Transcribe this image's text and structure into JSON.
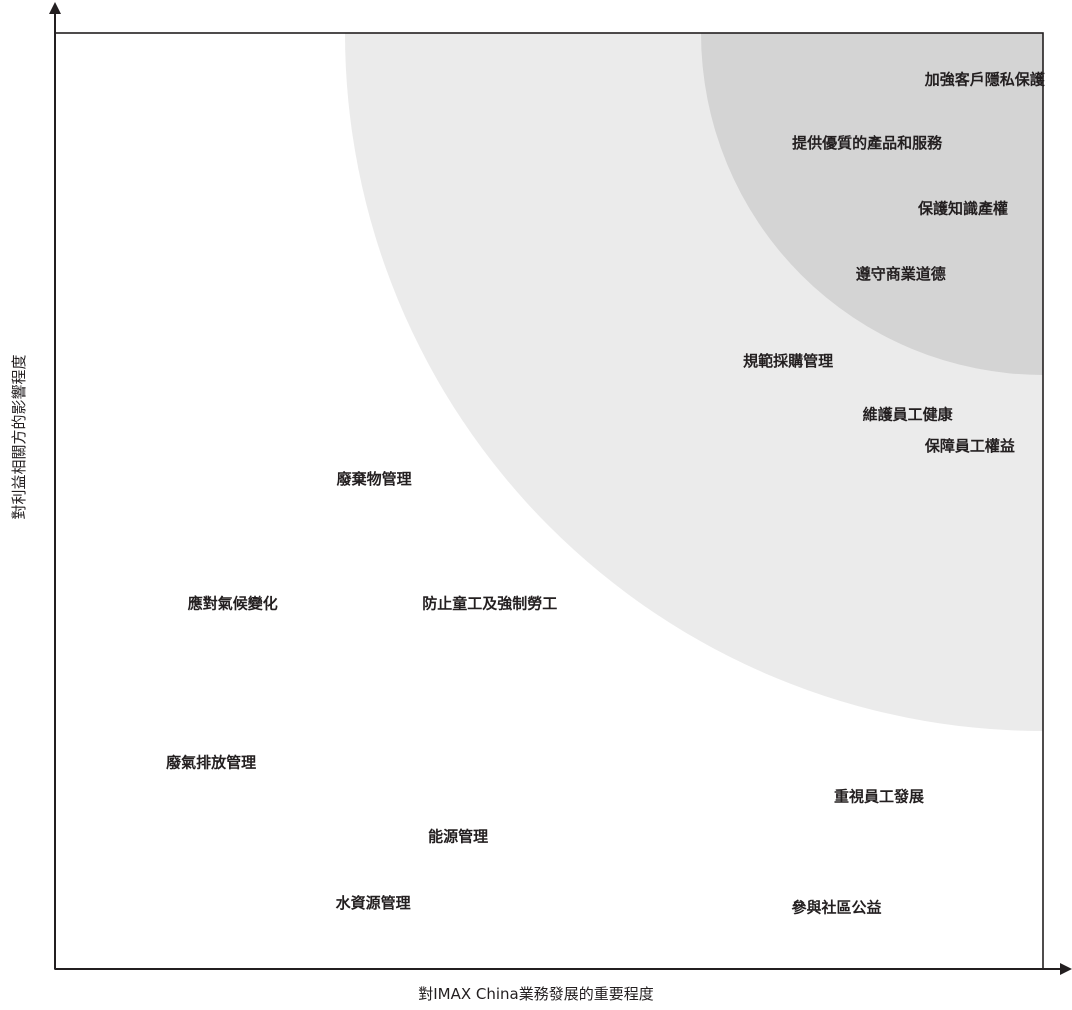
{
  "chart_data": {
    "type": "scatter",
    "xlabel": "對IMAX China業務發展的重要程度",
    "ylabel": "對利益相關方的影響程度",
    "xlim": [
      0,
      100
    ],
    "ylim": [
      0,
      100
    ],
    "grid": false,
    "zones": [
      {
        "level": "moderate",
        "color": "#ebebeb"
      },
      {
        "level": "high",
        "color": "#d4d4d4"
      }
    ],
    "points": [
      {
        "label": "加強客戶隱私保護",
        "x": 94.1,
        "y": 95.0
      },
      {
        "label": "提供優質的產品和服務",
        "x": 82.2,
        "y": 88.2
      },
      {
        "label": "保護知識產權",
        "x": 91.9,
        "y": 81.2
      },
      {
        "label": "遵守商業道德",
        "x": 85.6,
        "y": 74.2
      },
      {
        "label": "規範採購管理",
        "x": 74.2,
        "y": 64.9
      },
      {
        "label": "維護員工健康",
        "x": 86.3,
        "y": 59.2
      },
      {
        "label": "保障員工權益",
        "x": 92.6,
        "y": 55.8
      },
      {
        "label": "廢棄物管理",
        "x": 32.3,
        "y": 52.3
      },
      {
        "label": "應對氣候變化",
        "x": 18.0,
        "y": 39.0
      },
      {
        "label": "防止童工及強制勞工",
        "x": 44.0,
        "y": 39.0
      },
      {
        "label": "廢氣排放管理",
        "x": 15.8,
        "y": 22.0
      },
      {
        "label": "重視員工發展",
        "x": 83.4,
        "y": 18.4
      },
      {
        "label": "能源管理",
        "x": 40.8,
        "y": 14.1
      },
      {
        "label": "水資源管理",
        "x": 32.2,
        "y": 7.0
      },
      {
        "label": "參與社區公益",
        "x": 79.1,
        "y": 6.5
      }
    ]
  }
}
